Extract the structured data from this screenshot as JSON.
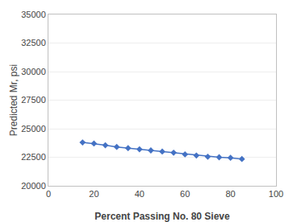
{
  "chart_data": {
    "type": "line",
    "x": [
      15,
      20,
      25,
      30,
      35,
      40,
      45,
      50,
      55,
      60,
      65,
      70,
      75,
      80,
      85
    ],
    "values": [
      23800,
      23700,
      23550,
      23400,
      23300,
      23200,
      23100,
      23000,
      22900,
      22750,
      22650,
      22550,
      22500,
      22450,
      22350
    ],
    "color": "#4472C4",
    "marker": "diamond",
    "xlabel": "Percent Passing No. 80 Sieve",
    "ylabel": "Predicted Mr, psi",
    "xlim": [
      0,
      100
    ],
    "ylim": [
      20000,
      35000
    ],
    "xticks": [
      0,
      20,
      40,
      60,
      80,
      100
    ],
    "yticks": [
      20000,
      22500,
      25000,
      27500,
      30000,
      32500,
      35000
    ],
    "grid": "y"
  }
}
